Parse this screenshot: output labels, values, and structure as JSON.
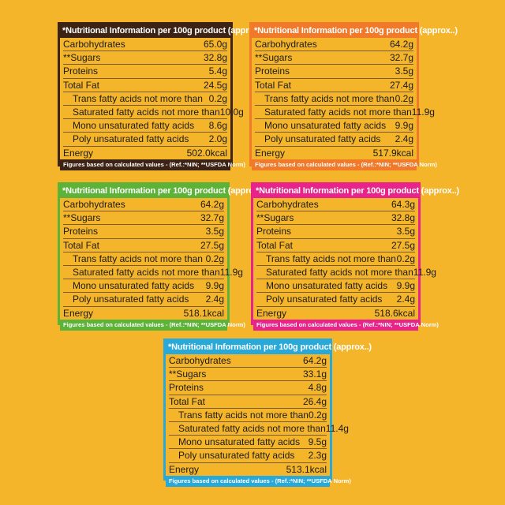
{
  "header": "*Nutritional Information per 100g product (approx..)",
  "footer": "Figures based on calculated values - (Ref.:*NIN; **USFDA Norm)",
  "labels": {
    "carbs": "Carbohydrates",
    "sugars": "**Sugars",
    "proteins": "Proteins",
    "fat": "Total Fat",
    "trans": "Trans fatty acids not more than",
    "saturated": "Saturated fatty acids not more than",
    "mono": "Mono unsaturated fatty acids",
    "poly": "Poly unsaturated fatty acids",
    "energy": "Energy"
  },
  "panels": [
    {
      "carbs": "65.0g",
      "sugars": "32.8g",
      "proteins": "5.4g",
      "fat": "24.5g",
      "trans": "0.2g",
      "saturated": "10.0g",
      "mono": "8.6g",
      "poly": "2.0g",
      "energy": "502.0kcal"
    },
    {
      "carbs": "64.2g",
      "sugars": "32.7g",
      "proteins": "3.5g",
      "fat": "27.4g",
      "trans": "0.2g",
      "saturated": "11.9g",
      "mono": "9.9g",
      "poly": "2.4g",
      "energy": "517.9kcal"
    },
    {
      "carbs": "64.2g",
      "sugars": "32.7g",
      "proteins": "3.5g",
      "fat": "27.5g",
      "trans": "0.2g",
      "saturated": "11.9g",
      "mono": "9.9g",
      "poly": "2.4g",
      "energy": "518.1kcal"
    },
    {
      "carbs": "64.3g",
      "sugars": "32.8g",
      "proteins": "3.5g",
      "fat": "27.5g",
      "trans": "0.2g",
      "saturated": "11.9g",
      "mono": "9.9g",
      "poly": "2.4g",
      "energy": "518.6kcal"
    },
    {
      "carbs": "64.2g",
      "sugars": "33.1g",
      "proteins": "4.8g",
      "fat": "26.4g",
      "trans": "0.2g",
      "saturated": "11.4g",
      "mono": "9.5g",
      "poly": "2.3g",
      "energy": "513.1kcal"
    }
  ],
  "colors": {
    "background": "#f5b52a",
    "panel_1": "#3d2314",
    "panel_2": "#f07a2a",
    "panel_3": "#5cb338",
    "panel_4": "#e8238a",
    "panel_5": "#29a9d9"
  }
}
